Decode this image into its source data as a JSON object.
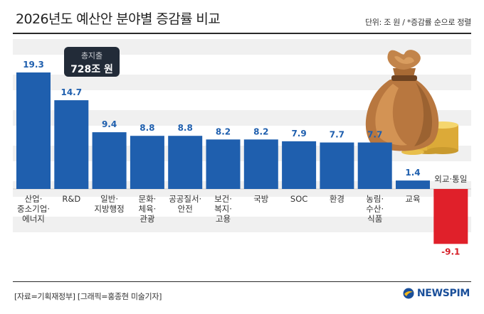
{
  "title": "2026년도 예산안 분야별 증감률 비교",
  "unit_note": "단위: 조 원 / *증감률 순으로 정렬",
  "total_badge": {
    "label": "총지출",
    "value": "728조 원"
  },
  "footer": {
    "source": "[자료=기획재정부] [그래픽=홍종현 미술기자]"
  },
  "logo": {
    "text": "NEWSPIM",
    "icon": "globe-icon"
  },
  "colors": {
    "positive_bar": "#1f5fae",
    "negative_bar": "#e0202a",
    "positive_label": "#1f5fae",
    "negative_label": "#d61e26",
    "band": "#f0f0f0"
  },
  "illustration": {
    "icon": "money-bag-with-coins-icon"
  },
  "chart_data": {
    "type": "bar",
    "categories": [
      [
        "산업·",
        "중소기업·",
        "에너지"
      ],
      [
        "R&D"
      ],
      [
        "일반·",
        "지방행정"
      ],
      [
        "문화·",
        "체육·",
        "관광"
      ],
      [
        "공공질서·",
        "안전"
      ],
      [
        "보건·",
        "복지·",
        "고용"
      ],
      [
        "국방"
      ],
      [
        "SOC"
      ],
      [
        "환경"
      ],
      [
        "농림·",
        "수산·",
        "식품"
      ],
      [
        "교육"
      ],
      [
        "외교·통일"
      ]
    ],
    "values": [
      19.3,
      14.7,
      9.4,
      8.8,
      8.8,
      8.2,
      8.2,
      7.9,
      7.7,
      7.7,
      1.4,
      -9.1
    ],
    "value_labels": [
      "19.3",
      "14.7",
      "9.4",
      "8.8",
      "8.8",
      "8.2",
      "8.2",
      "7.9",
      "7.7",
      "7.7",
      "1.4",
      "-9.1"
    ],
    "ylim": [
      -9.1,
      19.3
    ],
    "grid": false
  }
}
